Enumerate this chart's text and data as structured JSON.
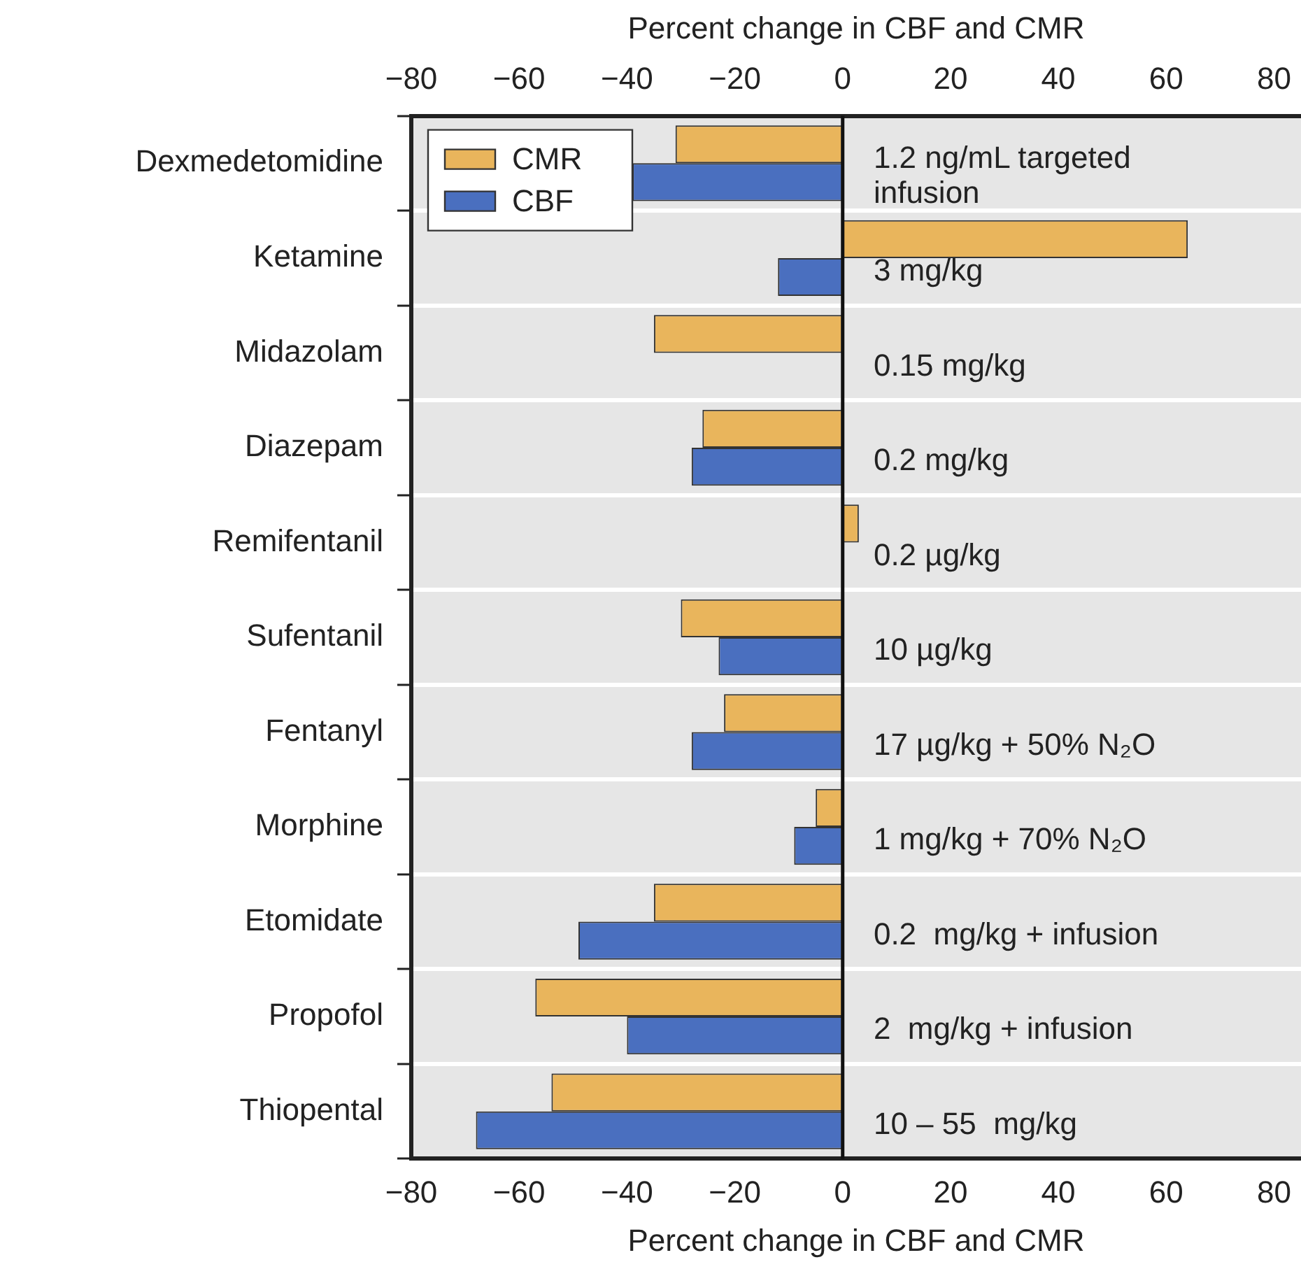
{
  "chart_data": {
    "type": "bar",
    "orientation": "horizontal",
    "xlabel": "Percent change in CBF and CMR",
    "x2label": "Percent change in CBF and CMR",
    "categories": [
      "Dexmedetomidine",
      "Ketamine",
      "Midazolam",
      "Diazepam",
      "Remifentanil",
      "Sufentanil",
      "Fentanyl",
      "Morphine",
      "Etomidate",
      "Propofol",
      "Thiopental"
    ],
    "series": [
      {
        "name": "CMR",
        "color": "#e9b55c",
        "values": [
          -31,
          64,
          -35,
          -26,
          3,
          -30,
          -22,
          -5,
          -35,
          -57,
          -54
        ]
      },
      {
        "name": "CBF",
        "color": "#4a6fbf",
        "values": [
          -39,
          -12,
          null,
          -28,
          null,
          -23,
          -28,
          -9,
          -49,
          -40,
          -68
        ]
      }
    ],
    "xlim": [
      -80,
      85
    ],
    "xticks": [
      -80,
      -60,
      -40,
      -20,
      0,
      20,
      40,
      60,
      80
    ],
    "x2lim": [
      -80,
      85
    ],
    "x2ticks": [
      -80,
      -60,
      -40,
      -20,
      0,
      20,
      40,
      60,
      80
    ],
    "ref_lines": [
      {
        "axis": "x",
        "value": 0,
        "color": "#111111"
      }
    ],
    "annotations": [
      "1.2 ng/mL targeted infusion",
      "3 mg/kg",
      "0.15 mg/kg",
      "0.2 mg/kg",
      "0.2 µg/kg",
      "10 µg/kg",
      "17 µg/kg + 50% N₂O",
      "1 mg/kg + 70% N₂O",
      "0.2  mg/kg + infusion",
      "2  mg/kg + infusion",
      "10 – 55  mg/kg"
    ],
    "grid": "y",
    "legend": "top left"
  }
}
